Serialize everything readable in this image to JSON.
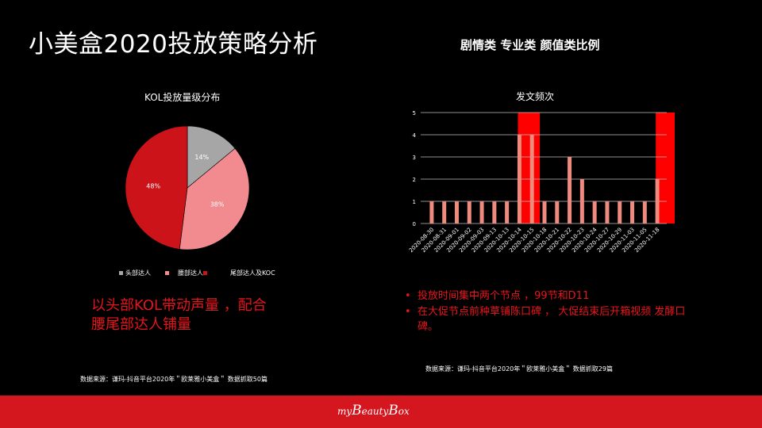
{
  "header": {
    "title": "小美盒2020投放策略分析",
    "right_title": "剧情类 专业类 颜值类比例"
  },
  "colors": {
    "background": "#000000",
    "accent_red": "#e8141b",
    "footer_red": "#d4161e",
    "bar_color": "#ee8a7e",
    "highlight_red": "#ff0000"
  },
  "pie_section": {
    "legend": [
      {
        "label": "头部达人",
        "color": "#a6a6a6"
      },
      {
        "label": "腰部达人",
        "color": "#f28b8f"
      },
      {
        "label": "尾部达人及KOC",
        "color": "#cc1319"
      }
    ],
    "note_line1": "以头部KOL带动声量 ，配合",
    "note_line2": "腰尾部达人铺量",
    "source": "数据来源：谦玛-抖音平台2020年＂欧莱雅小美盒＂ 数据抓取50篇"
  },
  "bar_section": {
    "bullets": [
      "投放时间集中两个节点 ，99节和D11",
      "在大促节点前种草铺陈口碑 ， 大促结束后开箱视频 发酵口碑。"
    ],
    "bullet_glyph": "•",
    "source": "数据来源：谦玛-抖音平台2020年＂欧莱雅小美盒＂ 数据抓取29篇"
  },
  "chart_data": [
    {
      "type": "pie",
      "title": "KOL投放量级分布",
      "categories": [
        "头部达人",
        "腰部达人",
        "尾部达人及KOC"
      ],
      "values": [
        14,
        38,
        48
      ],
      "labels": [
        "14%",
        "38%",
        "48%"
      ],
      "colors": [
        "#a6a6a6",
        "#f28b8f",
        "#cc1319"
      ],
      "legend_position": "bottom"
    },
    {
      "type": "bar",
      "title": "发文频次",
      "categories": [
        "2020-08-30",
        "2020-08-31",
        "2020-09-01",
        "2020-09-02",
        "2020-09-03",
        "2020-09-13",
        "2020-10-13",
        "2020-10-14",
        "2020-10-15",
        "2020-10-18",
        "2020-10-21",
        "2020-10-22",
        "2020-10-23",
        "2020-10-24",
        "2020-10-27",
        "2020-10-29",
        "2020-11-03",
        "2020-11-05",
        "2020-11-18"
      ],
      "values": [
        1,
        1,
        1,
        1,
        1,
        1,
        1,
        4,
        4,
        1,
        1,
        3,
        2,
        1,
        1,
        1,
        1,
        1,
        2
      ],
      "xlabel": "",
      "ylabel": "",
      "ylim": [
        0,
        5
      ],
      "yticks": [
        "0",
        "1",
        "2",
        "3",
        "4",
        "5"
      ],
      "grid": true,
      "highlights": [
        {
          "from": "2020-10-14",
          "to": "2020-10-15",
          "color": "#ff0000"
        },
        {
          "from": "2020-11-18",
          "to": "2020-11-18",
          "color": "#ff0000"
        }
      ]
    }
  ],
  "footer": {
    "logo_prefix": "my",
    "logo_b1": "B",
    "logo_mid": "eauty",
    "logo_b2": "B",
    "logo_suffix": "ox"
  }
}
